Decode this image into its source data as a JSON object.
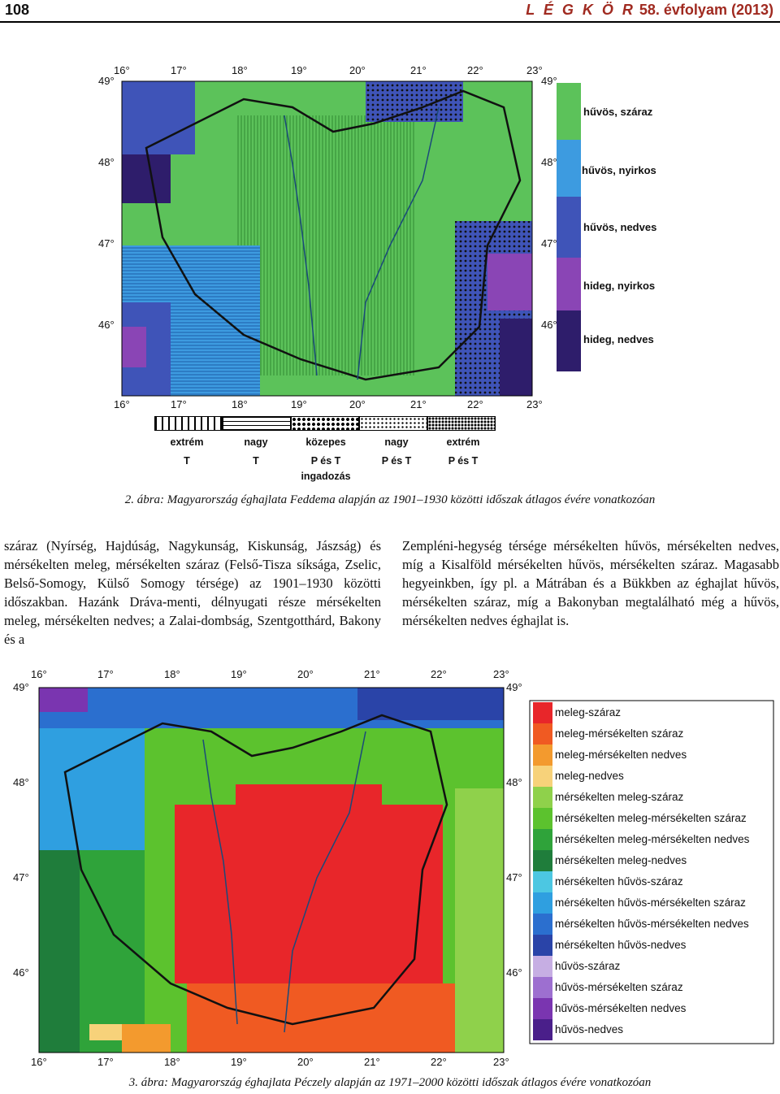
{
  "header": {
    "page_number": "108",
    "journal": "L É G K Ö R",
    "volume": " 58. évfolyam (2013)"
  },
  "figure2": {
    "caption": "2. ábra: Magyarország éghajlata Feddema alapján az 1901–1930 közötti időszak átlagos évére vonatkozóan",
    "lon_labels": [
      "16°",
      "17°",
      "18°",
      "19°",
      "20°",
      "21°",
      "22°",
      "23°"
    ],
    "lat_labels": [
      "49°",
      "48°",
      "47°",
      "46°"
    ],
    "legend": [
      {
        "label": "hűvös, száraz",
        "color": "#5cc25a"
      },
      {
        "label": "hűvös, nyirkos",
        "color": "#3d9be0"
      },
      {
        "label": "hűvös, nedves",
        "color": "#3f54b8"
      },
      {
        "label": "hideg, nyirkos",
        "color": "#8a45b5"
      },
      {
        "label": "hideg, nedves",
        "color": "#2e1d6b"
      }
    ],
    "pattern_legend": [
      {
        "line1": "extrém",
        "line2": "T"
      },
      {
        "line1": "nagy",
        "line2": "T"
      },
      {
        "line1": "közepes",
        "line2": "P és T",
        "line3": "ingadozás"
      },
      {
        "line1": "nagy",
        "line2": "P és T"
      },
      {
        "line1": "extrém",
        "line2": "P és T"
      }
    ]
  },
  "body_text": {
    "left": "száraz (Nyírség, Hajdúság, Nagykunság, Kiskunság, Jászság) és mérsékelten meleg, mérsékelten száraz (Felső-Tisza síksága, Zselic, Belső-Somogy, Külső Somogy térsége) az 1901–1930 közötti időszakban. Hazánk Dráva-menti, délnyugati része mérsékelten meleg, mérsékelten nedves; a Zalai-dombság, Szentgotthárd, Bakony és a",
    "right": "Zempléni-hegység térsége mérsékelten hűvös, mérsékelten nedves, míg a Kisalföld mérsékelten hűvös, mérsékelten száraz. Magasabb hegyeinkben, így pl. a Mátrában és a Bükkben az éghajlat hűvös, mérsékelten száraz, míg a Bakonyban megtalálható még a hűvös, mérsékelten nedves éghajlat is."
  },
  "figure3": {
    "caption": "3. ábra: Magyarország éghajlata Péczely alapján az 1971–2000 közötti időszak átlagos évére vonatkozóan",
    "lon_labels": [
      "16°",
      "17°",
      "18°",
      "19°",
      "20°",
      "21°",
      "22°",
      "23°"
    ],
    "lat_labels": [
      "49°",
      "48°",
      "47°",
      "46°"
    ],
    "legend": [
      {
        "label": "meleg-száraz",
        "color": "#e8262a"
      },
      {
        "label": "meleg-mérsékelten száraz",
        "color": "#f05a22"
      },
      {
        "label": "meleg-mérsékelten nedves",
        "color": "#f39a2e"
      },
      {
        "label": "meleg-nedves",
        "color": "#f7d27a"
      },
      {
        "label": "mérsékelten meleg-száraz",
        "color": "#8fd14b"
      },
      {
        "label": "mérsékelten meleg-mérsékelten száraz",
        "color": "#5cc22e"
      },
      {
        "label": "mérsékelten meleg-mérsékelten nedves",
        "color": "#2fa33a"
      },
      {
        "label": "mérsékelten meleg-nedves",
        "color": "#1f7d3b"
      },
      {
        "label": "mérsékelten hűvös-száraz",
        "color": "#4cc7e2"
      },
      {
        "label": "mérsékelten hűvös-mérsékelten száraz",
        "color": "#2f9fe0"
      },
      {
        "label": "mérsékelten hűvös-mérsékelten nedves",
        "color": "#2b6fcf"
      },
      {
        "label": "mérsékelten hűvös-nedves",
        "color": "#2a44a8"
      },
      {
        "label": "hűvös-száraz",
        "color": "#c6aee3"
      },
      {
        "label": "hűvös-mérsékelten száraz",
        "color": "#9d6fd0"
      },
      {
        "label": "hűvös-mérsékelten nedves",
        "color": "#7a35b0"
      },
      {
        "label": "hűvös-nedves",
        "color": "#4a1f8a"
      }
    ]
  }
}
